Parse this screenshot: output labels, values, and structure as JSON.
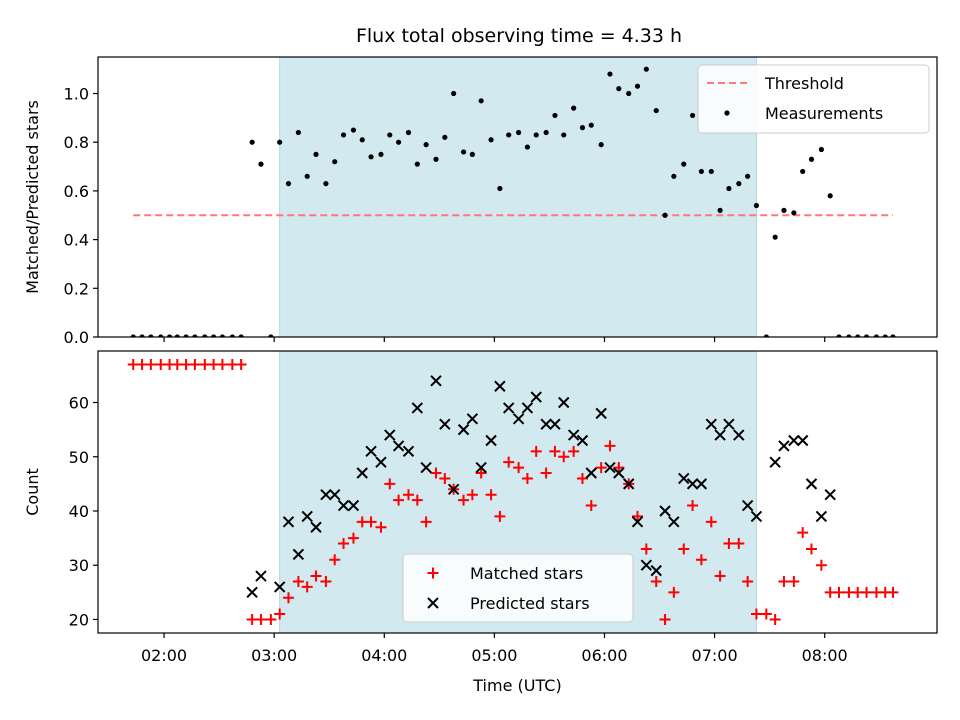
{
  "title": "Flux total observing time = 4.33 h",
  "colors": {
    "shade": "#d3e9f0",
    "threshold": "#ff7777",
    "measurement": "#000000",
    "matched": "#ff0000",
    "predicted": "#000000"
  },
  "chart_data": [
    {
      "type": "scatter",
      "ylabel": "Matched/Predicted stars",
      "xlim": [
        1.4,
        9.02
      ],
      "ylim": [
        0,
        1.15
      ],
      "yticks": [
        "0.0",
        "0.2",
        "0.4",
        "0.6",
        "0.8",
        "1.0"
      ],
      "ytick_values": [
        0,
        0.2,
        0.4,
        0.6,
        0.8,
        1.0
      ],
      "shaded_span": [
        3.05,
        7.38
      ],
      "legend_position": "top-right",
      "series": [
        {
          "name": "Threshold",
          "kind": "line",
          "style": "dashed",
          "x": [
            1.72,
            8.62
          ],
          "y": [
            0.5,
            0.5
          ]
        },
        {
          "name": "Measurements",
          "kind": "points",
          "x": [
            1.72,
            1.8,
            1.88,
            1.97,
            2.05,
            2.12,
            2.2,
            2.28,
            2.37,
            2.45,
            2.53,
            2.62,
            2.7,
            2.8,
            2.88,
            2.97,
            3.05,
            3.13,
            3.22,
            3.3,
            3.38,
            3.47,
            3.55,
            3.63,
            3.72,
            3.8,
            3.88,
            3.97,
            4.05,
            4.13,
            4.22,
            4.3,
            4.38,
            4.47,
            4.55,
            4.63,
            4.72,
            4.8,
            4.88,
            4.97,
            5.05,
            5.13,
            5.22,
            5.3,
            5.38,
            5.47,
            5.55,
            5.63,
            5.72,
            5.8,
            5.88,
            5.97,
            6.05,
            6.13,
            6.22,
            6.3,
            6.38,
            6.47,
            6.55,
            6.63,
            6.72,
            6.8,
            6.88,
            6.97,
            7.05,
            7.13,
            7.22,
            7.3,
            7.38,
            7.47,
            7.55,
            7.63,
            7.72,
            7.8,
            7.88,
            7.97,
            8.05,
            8.13,
            8.22,
            8.3,
            8.38,
            8.47,
            8.55,
            8.62
          ],
          "y": [
            0,
            0,
            0,
            0,
            0,
            0,
            0,
            0,
            0,
            0,
            0,
            0,
            0,
            0.8,
            0.71,
            0,
            0.8,
            0.63,
            0.84,
            0.66,
            0.75,
            0.63,
            0.72,
            0.83,
            0.85,
            0.81,
            0.74,
            0.75,
            0.83,
            0.8,
            0.84,
            0.71,
            0.79,
            0.73,
            0.82,
            1.0,
            0.76,
            0.75,
            0.97,
            0.81,
            0.61,
            0.83,
            0.84,
            0.78,
            0.83,
            0.84,
            0.91,
            0.83,
            0.94,
            0.86,
            0.87,
            0.79,
            1.08,
            1.02,
            1.0,
            1.03,
            1.1,
            0.93,
            0.5,
            0.66,
            0.71,
            0.91,
            0.68,
            0.68,
            0.52,
            0.61,
            0.63,
            0.66,
            0.54,
            0,
            0.41,
            0.52,
            0.51,
            0.68,
            0.73,
            0.77,
            0.58,
            0,
            0,
            0,
            0,
            0,
            0,
            0
          ]
        }
      ]
    },
    {
      "type": "scatter",
      "xlabel": "Time (UTC)",
      "ylabel": "Count",
      "xlim": [
        1.4,
        9.02
      ],
      "ylim": [
        17.5,
        69.5
      ],
      "xticks": [
        "02:00",
        "03:00",
        "04:00",
        "05:00",
        "06:00",
        "07:00",
        "08:00"
      ],
      "xtick_values": [
        2,
        3,
        4,
        5,
        6,
        7,
        8
      ],
      "yticks": [
        "20",
        "30",
        "40",
        "50",
        "60"
      ],
      "ytick_values": [
        20,
        30,
        40,
        50,
        60
      ],
      "shaded_span": [
        3.05,
        7.38
      ],
      "legend_position": "lower center",
      "series": [
        {
          "name": "Matched stars",
          "marker": "plus",
          "x": [
            1.72,
            1.8,
            1.88,
            1.97,
            2.05,
            2.12,
            2.2,
            2.28,
            2.37,
            2.45,
            2.53,
            2.62,
            2.7,
            2.8,
            2.88,
            2.97,
            3.05,
            3.13,
            3.22,
            3.3,
            3.38,
            3.47,
            3.55,
            3.63,
            3.72,
            3.8,
            3.88,
            3.97,
            4.05,
            4.13,
            4.22,
            4.3,
            4.38,
            4.47,
            4.55,
            4.63,
            4.72,
            4.8,
            4.88,
            4.97,
            5.05,
            5.13,
            5.22,
            5.3,
            5.38,
            5.47,
            5.55,
            5.63,
            5.72,
            5.8,
            5.88,
            5.97,
            6.05,
            6.13,
            6.22,
            6.3,
            6.38,
            6.47,
            6.55,
            6.63,
            6.72,
            6.8,
            6.88,
            6.97,
            7.05,
            7.13,
            7.22,
            7.3,
            7.38,
            7.47,
            7.55,
            7.63,
            7.72,
            7.8,
            7.88,
            7.97,
            8.05,
            8.13,
            8.22,
            8.3,
            8.38,
            8.47,
            8.55,
            8.62
          ],
          "y": [
            67,
            67,
            67,
            67,
            67,
            67,
            67,
            67,
            67,
            67,
            67,
            67,
            67,
            20,
            20,
            20,
            21,
            24,
            27,
            26,
            28,
            27,
            31,
            34,
            35,
            38,
            38,
            37,
            45,
            42,
            43,
            42,
            38,
            47,
            46,
            44,
            42,
            43,
            47,
            43,
            39,
            49,
            48,
            46,
            51,
            47,
            51,
            50,
            51,
            46,
            41,
            48,
            52,
            48,
            45,
            39,
            33,
            27,
            20,
            25,
            33,
            41,
            31,
            38,
            28,
            34,
            34,
            27,
            21,
            21,
            20,
            27,
            27,
            36,
            33,
            30,
            25,
            25,
            25,
            25,
            25,
            25,
            25,
            25
          ]
        },
        {
          "name": "Predicted stars",
          "marker": "x",
          "x": [
            2.8,
            2.88,
            3.05,
            3.13,
            3.22,
            3.3,
            3.38,
            3.47,
            3.55,
            3.63,
            3.72,
            3.8,
            3.88,
            3.97,
            4.05,
            4.13,
            4.22,
            4.3,
            4.38,
            4.47,
            4.55,
            4.63,
            4.72,
            4.8,
            4.88,
            4.97,
            5.05,
            5.13,
            5.22,
            5.3,
            5.38,
            5.47,
            5.55,
            5.63,
            5.72,
            5.8,
            5.88,
            5.97,
            6.05,
            6.13,
            6.22,
            6.3,
            6.38,
            6.47,
            6.55,
            6.63,
            6.72,
            6.8,
            6.88,
            6.97,
            7.05,
            7.13,
            7.22,
            7.3,
            7.38,
            7.55,
            7.63,
            7.72,
            7.8,
            7.88,
            7.97,
            8.05
          ],
          "y": [
            25,
            28,
            26,
            38,
            32,
            39,
            37,
            43,
            43,
            41,
            41,
            47,
            51,
            49,
            54,
            52,
            51,
            59,
            48,
            64,
            56,
            44,
            55,
            57,
            48,
            53,
            63,
            59,
            57,
            59,
            61,
            56,
            56,
            60,
            54,
            53,
            47,
            58,
            48,
            47,
            45,
            38,
            30,
            29,
            40,
            38,
            46,
            45,
            45,
            56,
            54,
            56,
            54,
            41,
            39,
            49,
            52,
            53,
            53,
            45,
            39,
            43
          ]
        }
      ]
    }
  ]
}
